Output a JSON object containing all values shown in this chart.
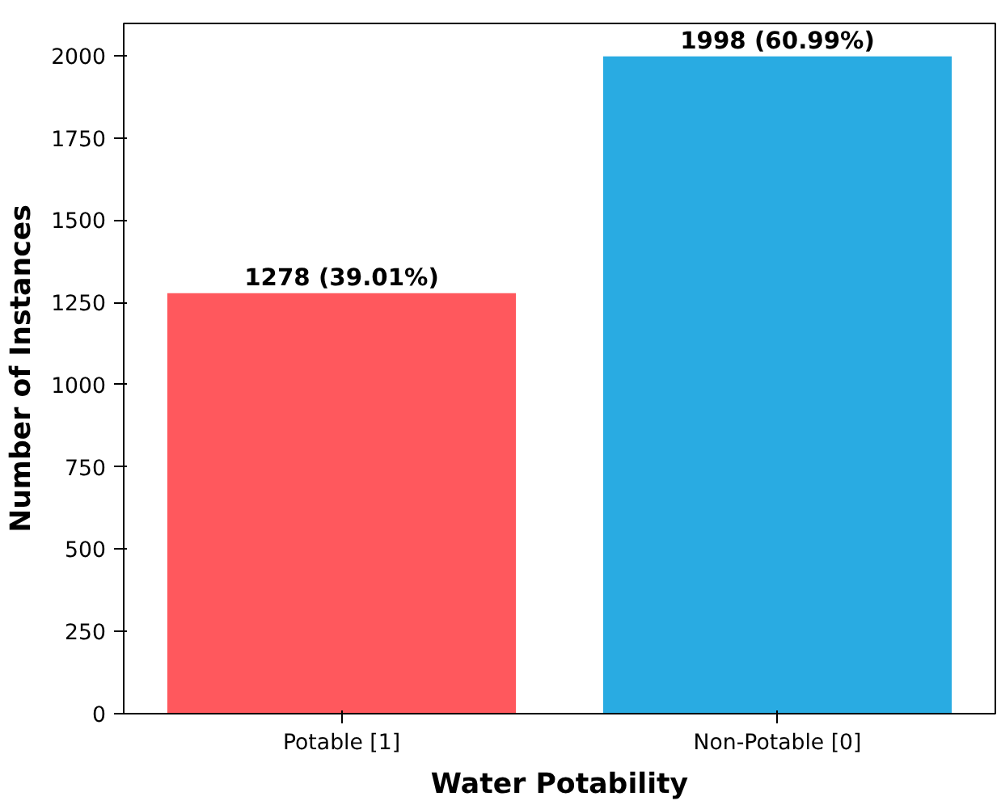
{
  "chart_data": {
    "type": "bar",
    "xlabel": "Water Potability",
    "ylabel": "Number of Instances",
    "categories": [
      "Potable [1]",
      "Non-Potable [0]"
    ],
    "values": [
      1278,
      1998
    ],
    "colors": [
      "#ff585d",
      "#29abe2"
    ],
    "value_labels": [
      "1278 (39.01%)",
      "1998 (60.99%)"
    ],
    "ylim": [
      0,
      2098
    ],
    "yticks": [
      0,
      250,
      500,
      750,
      1000,
      1250,
      1500,
      1750,
      2000
    ],
    "grid": false
  }
}
